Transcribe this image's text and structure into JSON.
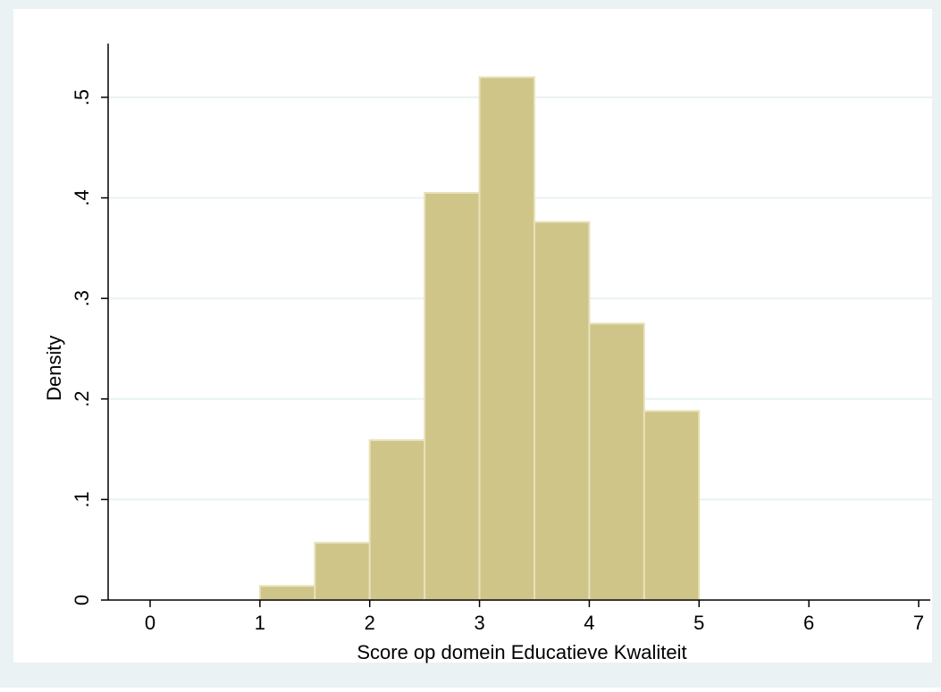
{
  "colors": {
    "outer_background": "#eaf2f3",
    "plot_background": "#ffffff",
    "gridline": "#eaf2f3",
    "bar_fill": "#cfc589",
    "bar_stroke": "#e8e2bb",
    "axis": "#000000"
  },
  "chart_data": {
    "type": "bar",
    "title": "",
    "xlabel": "Score op domein Educatieve Kwaliteit",
    "ylabel": "Density",
    "xlim": [
      0,
      7
    ],
    "ylim": [
      0,
      0.55
    ],
    "x_ticks": [
      {
        "value": 0,
        "label": "0"
      },
      {
        "value": 1,
        "label": "1"
      },
      {
        "value": 2,
        "label": "2"
      },
      {
        "value": 3,
        "label": "3"
      },
      {
        "value": 4,
        "label": "4"
      },
      {
        "value": 5,
        "label": "5"
      },
      {
        "value": 6,
        "label": "6"
      },
      {
        "value": 7,
        "label": "7"
      }
    ],
    "y_ticks": [
      {
        "value": 0,
        "label": "0"
      },
      {
        "value": 0.1,
        "label": ".1"
      },
      {
        "value": 0.2,
        "label": ".2"
      },
      {
        "value": 0.3,
        "label": ".3"
      },
      {
        "value": 0.4,
        "label": ".4"
      },
      {
        "value": 0.5,
        "label": ".5"
      }
    ],
    "grid": true,
    "bins": [
      {
        "x0": 1.0,
        "x1": 1.5,
        "value": 0.014
      },
      {
        "x0": 1.5,
        "x1": 2.0,
        "value": 0.057
      },
      {
        "x0": 2.0,
        "x1": 2.5,
        "value": 0.159
      },
      {
        "x0": 2.5,
        "x1": 3.0,
        "value": 0.405
      },
      {
        "x0": 3.0,
        "x1": 3.5,
        "value": 0.52
      },
      {
        "x0": 3.5,
        "x1": 4.0,
        "value": 0.376
      },
      {
        "x0": 4.0,
        "x1": 4.5,
        "value": 0.275
      },
      {
        "x0": 4.5,
        "x1": 5.0,
        "value": 0.188
      }
    ]
  }
}
